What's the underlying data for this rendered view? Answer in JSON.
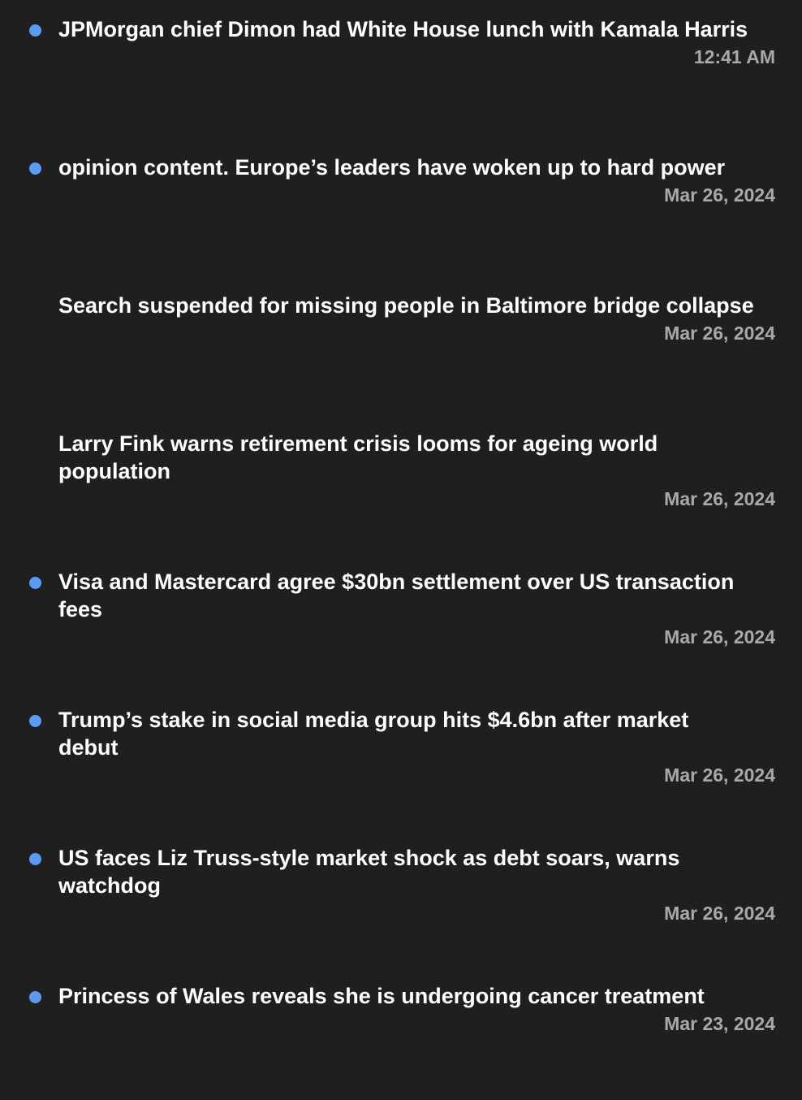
{
  "colors": {
    "background": "#1f1f1f",
    "unread_dot": "#5b9cf2",
    "title": "#ffffff",
    "date": "#a9a9a9"
  },
  "items": [
    {
      "title": "JPMorgan chief Dimon had White House lunch with Kamala Harris",
      "date": "12:41 AM",
      "unread": true
    },
    {
      "title": "opinion content. Europe’s leaders have woken up to hard power",
      "date": "Mar 26, 2024",
      "unread": true
    },
    {
      "title": "Search suspended for missing people in Baltimore bridge collapse",
      "date": "Mar 26, 2024",
      "unread": false
    },
    {
      "title": "Larry Fink warns retirement crisis looms for ageing world population",
      "date": "Mar 26, 2024",
      "unread": false
    },
    {
      "title": "Visa and Mastercard agree $30bn settlement over US transaction fees",
      "date": "Mar 26, 2024",
      "unread": true
    },
    {
      "title": "Trump’s stake in social media group hits $4.6bn after market debut",
      "date": "Mar 26, 2024",
      "unread": true
    },
    {
      "title": "US faces Liz Truss-style market shock as debt soars, warns watchdog",
      "date": "Mar 26, 2024",
      "unread": true
    },
    {
      "title": "Princess of Wales reveals she is undergoing cancer treatment",
      "date": "Mar 23, 2024",
      "unread": true
    }
  ]
}
